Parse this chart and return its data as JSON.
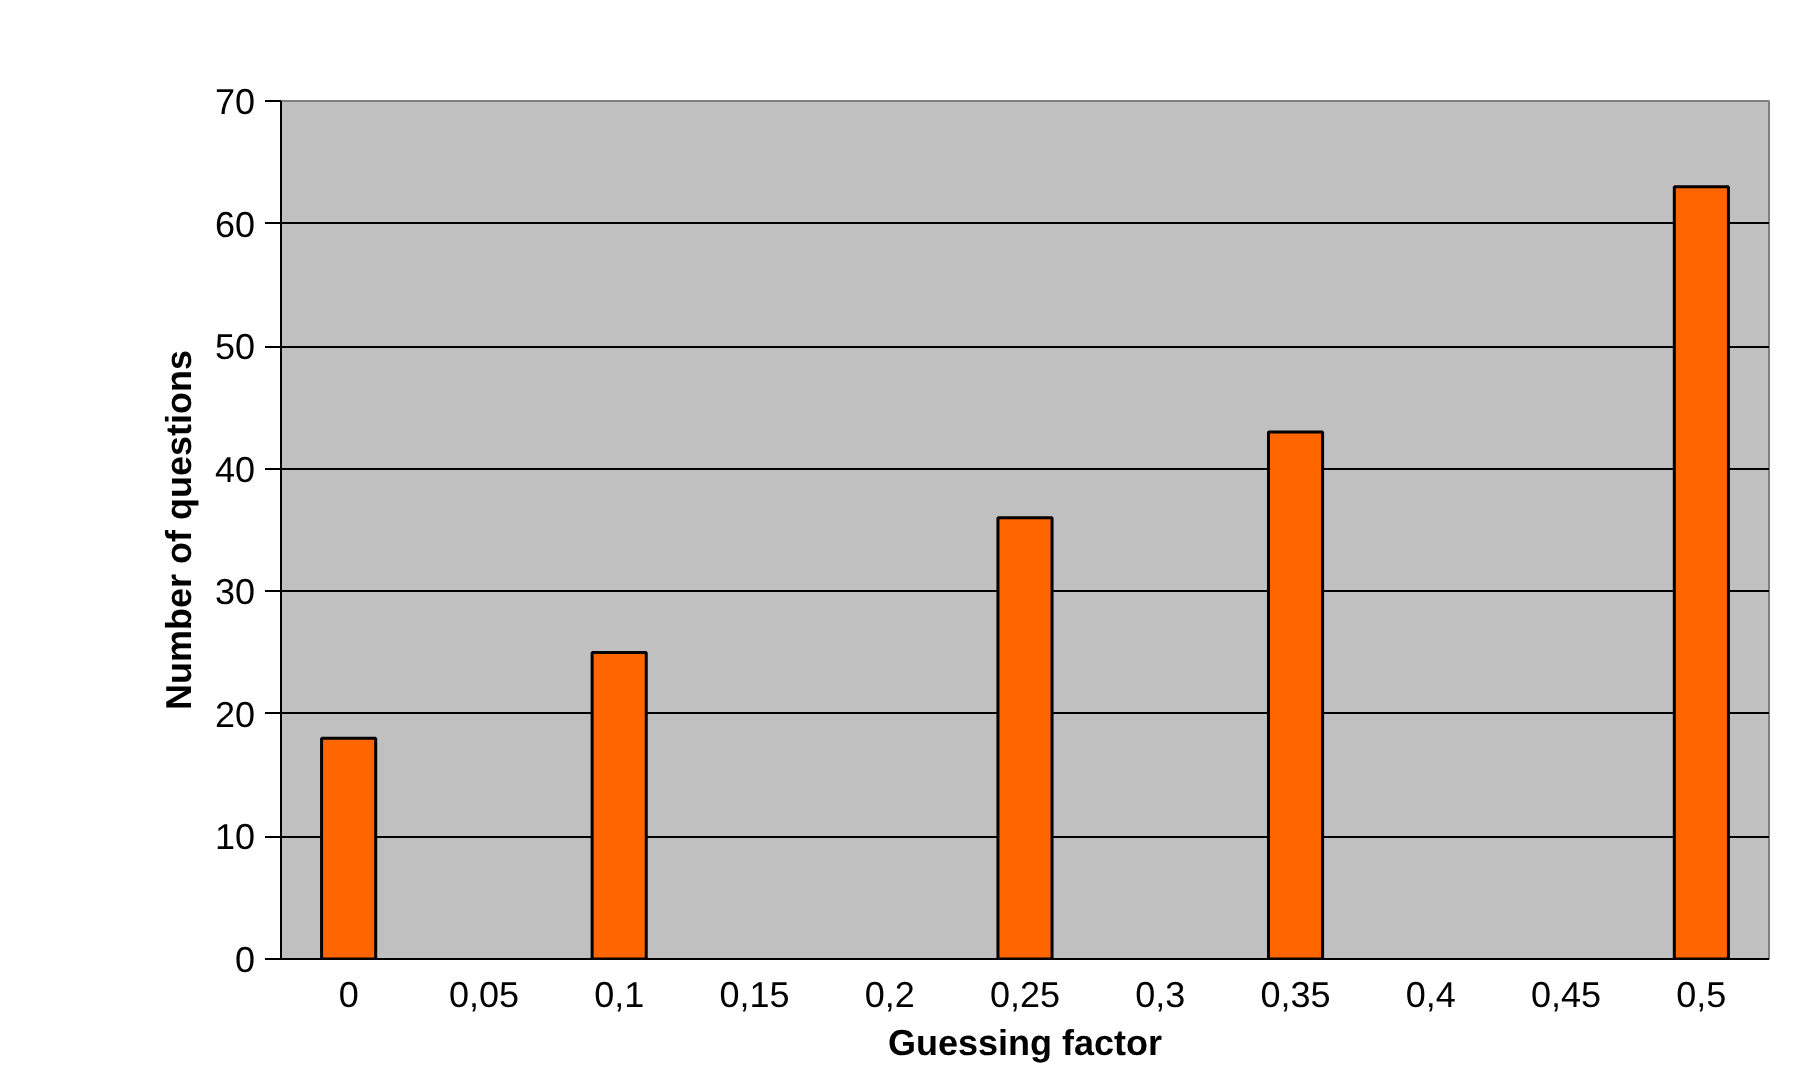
{
  "chart_data": {
    "type": "bar",
    "xlabel": "Guessing factor",
    "ylabel": "Number of questions",
    "categories": [
      "0",
      "0,05",
      "0,1",
      "0,15",
      "0,2",
      "0,25",
      "0,3",
      "0,35",
      "0,4",
      "0,45",
      "0,5"
    ],
    "values": [
      18,
      null,
      25,
      null,
      null,
      36,
      null,
      43,
      null,
      null,
      63
    ],
    "color": "#ff6600",
    "ylim": [
      0,
      70
    ],
    "yticks": [
      0,
      10,
      20,
      30,
      40,
      50,
      60,
      70
    ],
    "grid": "y"
  }
}
